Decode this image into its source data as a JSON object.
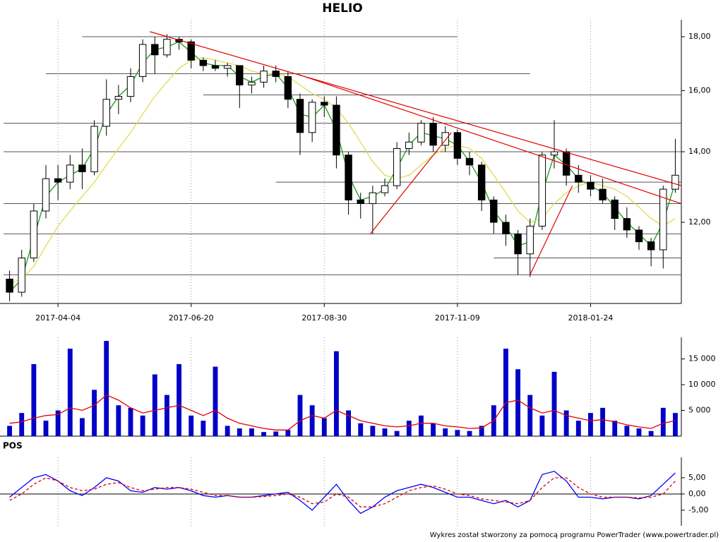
{
  "chart_data": [
    {
      "type": "candlestick",
      "title": "HELIO",
      "log": true,
      "categories": [
        null,
        null,
        null,
        null,
        "2017-04-04",
        null,
        null,
        null,
        null,
        null,
        null,
        null,
        null,
        null,
        null,
        "2017-06-20",
        null,
        null,
        null,
        null,
        null,
        null,
        null,
        null,
        null,
        null,
        "2017-08-30",
        null,
        null,
        null,
        null,
        null,
        null,
        null,
        null,
        null,
        null,
        "2017-11-09",
        null,
        null,
        null,
        null,
        null,
        null,
        null,
        null,
        null,
        null,
        "2018-01-24",
        null,
        null,
        null,
        null,
        null,
        null,
        null
      ],
      "open": [
        10.6,
        10.3,
        11.1,
        12.3,
        13.2,
        13.1,
        13.6,
        13.4,
        14.8,
        15.7,
        15.8,
        16.5,
        17.7,
        17.3,
        17.9,
        17.8,
        17.1,
        16.9,
        16.8,
        16.9,
        16.2,
        16.3,
        16.7,
        16.5,
        15.7,
        14.6,
        15.6,
        15.5,
        13.9,
        12.6,
        12.5,
        12.8,
        13.0,
        14.1,
        14.3,
        14.9,
        14.2,
        14.6,
        13.8,
        13.6,
        12.6,
        12.0,
        11.7,
        11.2,
        11.9,
        13.9,
        14.0,
        13.3,
        13.1,
        12.9,
        12.6,
        12.1,
        11.8,
        11.5,
        11.3,
        12.9
      ],
      "high": [
        10.8,
        11.3,
        12.5,
        13.6,
        13.6,
        13.9,
        14.1,
        15.0,
        16.4,
        16.2,
        16.8,
        17.9,
        18.0,
        18.1,
        18.0,
        17.9,
        17.2,
        17.1,
        17.0,
        16.9,
        16.5,
        16.9,
        16.9,
        16.7,
        15.9,
        15.7,
        15.8,
        15.8,
        14.0,
        12.8,
        13.0,
        13.2,
        14.3,
        14.6,
        15.0,
        15.1,
        14.8,
        14.7,
        14.0,
        13.7,
        12.7,
        12.2,
        11.8,
        12.1,
        14.0,
        15.0,
        14.1,
        13.6,
        13.3,
        13.2,
        12.7,
        12.4,
        11.9,
        11.6,
        13.0,
        14.4
      ],
      "low": [
        10.1,
        10.2,
        11.0,
        12.1,
        12.6,
        12.9,
        12.9,
        13.3,
        14.5,
        15.2,
        15.6,
        16.3,
        16.6,
        17.2,
        17.5,
        16.8,
        16.7,
        16.7,
        16.5,
        15.4,
        15.9,
        16.1,
        16.3,
        15.4,
        13.9,
        14.3,
        15.1,
        13.5,
        12.2,
        12.1,
        11.7,
        12.7,
        12.9,
        13.9,
        14.2,
        14.0,
        14.0,
        13.6,
        13.3,
        12.3,
        11.7,
        11.4,
        10.7,
        10.65,
        11.8,
        13.5,
        13.0,
        12.8,
        12.7,
        12.5,
        11.8,
        11.6,
        11.3,
        10.9,
        10.85,
        12.8
      ],
      "close": [
        10.3,
        11.1,
        12.3,
        13.2,
        13.1,
        13.6,
        13.4,
        14.8,
        15.7,
        15.8,
        16.5,
        17.7,
        17.3,
        17.9,
        17.8,
        17.1,
        16.9,
        16.8,
        16.9,
        16.2,
        16.3,
        16.7,
        16.5,
        15.7,
        14.6,
        15.6,
        15.5,
        13.9,
        12.6,
        12.5,
        12.8,
        13.0,
        14.1,
        14.3,
        14.9,
        14.2,
        14.6,
        13.8,
        13.6,
        12.6,
        12.0,
        11.7,
        11.2,
        11.9,
        13.9,
        14.0,
        13.3,
        13.1,
        12.9,
        12.6,
        12.1,
        11.8,
        11.5,
        11.3,
        12.9,
        13.3
      ],
      "lines": [
        {
          "color": "#1a9a1a",
          "values": [
            10.3,
            10.6,
            11.6,
            12.7,
            13.1,
            13.3,
            13.5,
            14.1,
            15.2,
            15.8,
            16.2,
            17.0,
            17.5,
            17.6,
            17.8,
            17.4,
            17.0,
            16.9,
            16.9,
            16.5,
            16.3,
            16.5,
            16.6,
            16.1,
            15.2,
            15.1,
            15.5,
            14.7,
            13.3,
            12.6,
            12.7,
            12.9,
            13.5,
            14.2,
            14.6,
            14.5,
            14.4,
            14.2,
            13.7,
            13.1,
            12.3,
            11.9,
            11.4,
            11.5,
            12.8,
            13.9,
            13.6,
            13.2,
            13.0,
            12.8,
            12.4,
            12.0,
            11.7,
            11.4,
            12.0,
            13.1
          ]
        },
        {
          "color": "#e0dc50",
          "values": [
            10.5,
            10.6,
            10.9,
            11.4,
            11.9,
            12.3,
            12.7,
            13.1,
            13.6,
            14.1,
            14.6,
            15.2,
            15.8,
            16.3,
            16.8,
            17.1,
            17.2,
            17.1,
            17.0,
            16.9,
            16.7,
            16.6,
            16.6,
            16.5,
            16.2,
            15.9,
            15.7,
            15.4,
            14.9,
            14.3,
            13.7,
            13.3,
            13.2,
            13.3,
            13.6,
            13.9,
            14.1,
            14.2,
            14.1,
            13.8,
            13.3,
            12.8,
            12.3,
            12.0,
            12.1,
            12.5,
            12.8,
            13.0,
            13.1,
            13.0,
            12.9,
            12.7,
            12.4,
            12.1,
            11.9,
            12.1
          ]
        }
      ],
      "levels": [
        {
          "y": 18.0,
          "x": [
            6,
            37
          ]
        },
        {
          "y": 16.6,
          "x": [
            3,
            43
          ]
        },
        {
          "y": 15.85,
          "x": [
            16,
            55.5
          ]
        },
        {
          "y": 14.9,
          "x": [
            -0.5,
            55.5
          ]
        },
        {
          "y": 14.0,
          "x": [
            -0.5,
            55.5
          ]
        },
        {
          "y": 13.1,
          "x": [
            22,
            55.5
          ]
        },
        {
          "y": 12.5,
          "x": [
            -0.5,
            55.5
          ]
        },
        {
          "y": 11.7,
          "x": [
            -0.5,
            55.5
          ]
        },
        {
          "y": 11.1,
          "x": [
            40,
            55.5
          ]
        },
        {
          "y": 10.7,
          "x": [
            -0.5,
            55.5
          ]
        }
      ],
      "level_color": "#555555",
      "trendlines": [
        {
          "x": [
            11.6,
            55.5
          ],
          "y": [
            18.2,
            13.0
          ]
        },
        {
          "x": [
            23.7,
            55.5
          ],
          "y": [
            16.6,
            12.5
          ]
        },
        {
          "x": [
            29.8,
            36.5
          ],
          "y": [
            11.7,
            14.6
          ]
        },
        {
          "x": [
            43,
            46.5
          ],
          "y": [
            10.7,
            13.0
          ]
        }
      ],
      "trend_color": "#e00000",
      "ylim": [
        10.05,
        18.68
      ],
      "yticks": [
        {
          "value": 12,
          "label": "12,00"
        },
        {
          "value": 14,
          "label": "14,00"
        },
        {
          "value": 16,
          "label": "16,00"
        },
        {
          "value": 18,
          "label": "18,00"
        }
      ]
    },
    {
      "type": "bar",
      "color": "#0000c8",
      "values": [
        2000,
        4500,
        14000,
        3000,
        5000,
        17000,
        3500,
        9000,
        18500,
        6000,
        5500,
        4000,
        12000,
        8000,
        14000,
        4000,
        3000,
        13500,
        2000,
        1500,
        1500,
        800,
        900,
        1200,
        8000,
        6000,
        3500,
        16500,
        5000,
        2500,
        2000,
        1500,
        1000,
        3000,
        4000,
        2500,
        1500,
        1200,
        1000,
        2000,
        6000,
        17000,
        13000,
        8000,
        4000,
        12500,
        5000,
        3000,
        4500,
        5500,
        3000,
        2000,
        1500,
        1000,
        5500,
        4500
      ],
      "lines": [
        {
          "color": "#e00000",
          "values": [
            2500,
            2800,
            3500,
            4000,
            4200,
            5500,
            5000,
            6000,
            8000,
            7000,
            5500,
            4500,
            5000,
            5500,
            6000,
            5000,
            4000,
            5000,
            3500,
            2500,
            2000,
            1500,
            1200,
            1200,
            3000,
            4000,
            3500,
            5000,
            4000,
            3000,
            2500,
            2000,
            1800,
            2000,
            2500,
            2500,
            2000,
            1800,
            1500,
            1600,
            3000,
            6500,
            7000,
            5500,
            4500,
            5000,
            4000,
            3500,
            3000,
            3200,
            2800,
            2200,
            1800,
            1500,
            2500,
            3000
          ]
        }
      ],
      "ylim": [
        0,
        19200
      ],
      "yticks": [
        {
          "value": 5000,
          "label": "5 000"
        },
        {
          "value": 10000,
          "label": "10 000"
        },
        {
          "value": 15000,
          "label": "15 000"
        }
      ]
    },
    {
      "type": "line",
      "title": "POS",
      "grid": "zero",
      "series": [
        {
          "color": "#0000ff",
          "dash": false,
          "values": [
            -1,
            2,
            5,
            6,
            4,
            1,
            -0.5,
            2,
            5,
            4,
            1,
            0.5,
            2,
            1.5,
            2,
            1,
            -0.5,
            -1,
            -0.5,
            -1,
            -1,
            -0.5,
            0,
            0.5,
            -2,
            -5,
            -1,
            3,
            -2,
            -6,
            -4,
            -1,
            1,
            2,
            3,
            2,
            0.5,
            -1,
            -1,
            -2,
            -3,
            -2,
            -4,
            -2,
            6,
            7,
            4,
            -1,
            -1,
            -1.5,
            -1,
            -1,
            -1.5,
            -0.5,
            3,
            6.5
          ]
        },
        {
          "color": "#e00000",
          "dash": true,
          "values": [
            -2,
            0,
            3,
            5,
            4,
            2,
            1,
            1.5,
            3,
            3.5,
            2,
            1,
            1.5,
            2,
            2,
            1.5,
            0.5,
            -0.5,
            -0.5,
            -1,
            -1,
            -0.8,
            -0.5,
            0,
            -1,
            -3,
            -2.5,
            0,
            -1,
            -4,
            -4,
            -3,
            -1,
            1,
            2,
            2.5,
            1.5,
            0,
            -0.5,
            -1.5,
            -2,
            -2.5,
            -3,
            -2,
            2,
            5,
            5,
            2,
            0,
            -1,
            -1,
            -1,
            -1.2,
            -1,
            0,
            4
          ]
        }
      ],
      "ylim": [
        -9.8,
        11.3
      ],
      "yticks": [
        {
          "value": -5,
          "label": "-5,00"
        },
        {
          "value": 0,
          "label": "0,00"
        },
        {
          "value": 5,
          "label": "5,00"
        }
      ]
    }
  ],
  "footer": "Wykres został stworzony za pomocą programu PowerTrader (www.powertrader.pl)"
}
